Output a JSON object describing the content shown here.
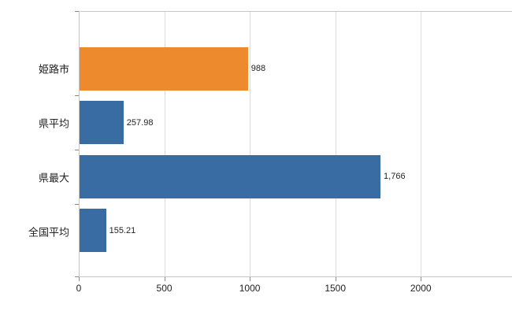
{
  "chart_data": {
    "type": "bar",
    "orientation": "horizontal",
    "title": "",
    "xlabel": "",
    "ylabel": "",
    "categories": [
      "姫路市",
      "県平均",
      "県最大",
      "全国平均"
    ],
    "values": [
      988,
      257.98,
      1766,
      155.21
    ],
    "value_labels": [
      "988",
      "257.98",
      "1,766",
      "155.21"
    ],
    "bar_colors": [
      "#ed8a2e",
      "#3a6ca4",
      "#3a6ca4",
      "#3a6ca4"
    ],
    "x_ticks": [
      0,
      500,
      1000,
      1500,
      2000
    ],
    "x_tick_labels": [
      "0",
      "500",
      "1000",
      "1500",
      "2000"
    ],
    "x_axis_max": 2570,
    "grid": "vertical",
    "legend": "none"
  },
  "colors": {
    "plot_border": "#c6c6c6",
    "gridline": "#dcdcdc",
    "tick": "#888888",
    "text": "#222222",
    "orange_bar": "#ed8a2e",
    "blue_bar": "#3a6ca4"
  }
}
